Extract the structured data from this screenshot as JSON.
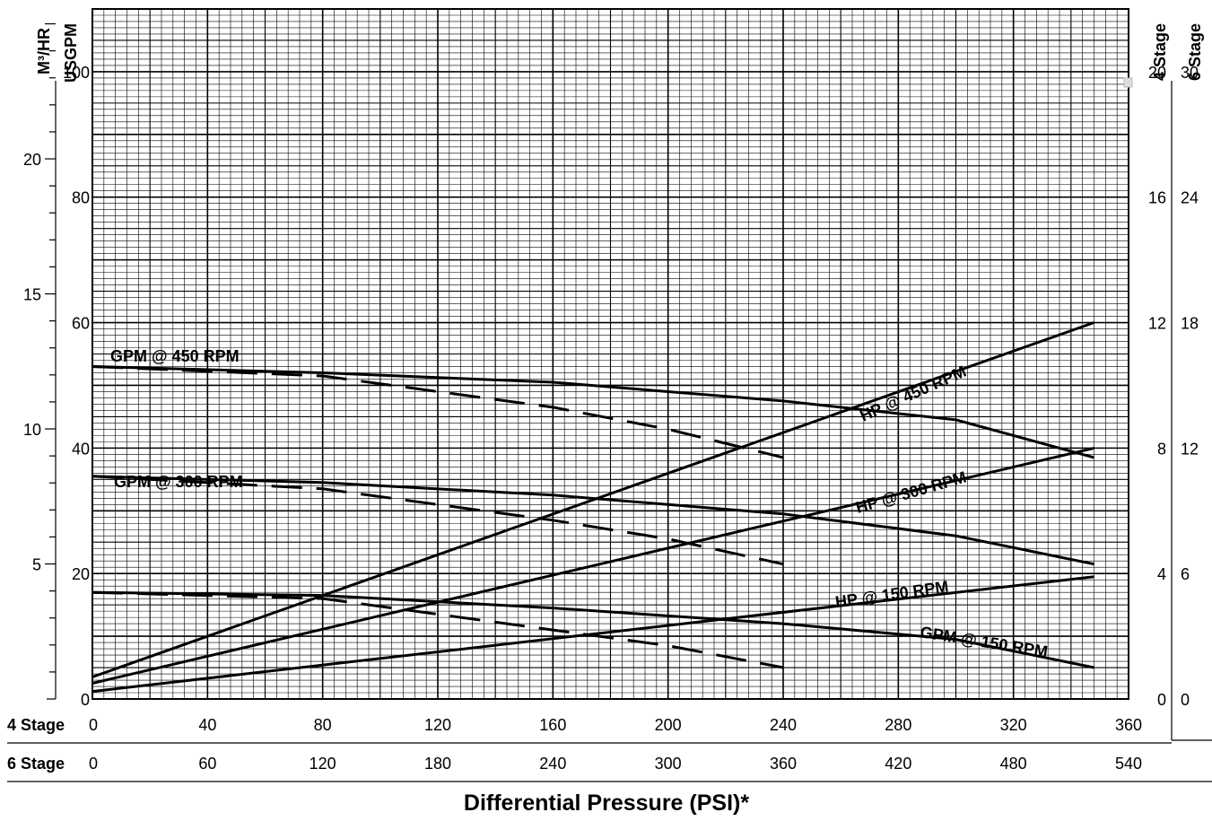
{
  "chart_data": {
    "type": "line",
    "xlabel": "Differential Pressure (PSI)*",
    "x_axes": [
      {
        "name": "4 Stage",
        "ticks": [
          0,
          40,
          80,
          120,
          160,
          200,
          240,
          280,
          320,
          360
        ]
      },
      {
        "name": "6 Stage",
        "ticks": [
          0,
          60,
          120,
          180,
          240,
          300,
          360,
          420,
          480,
          540
        ]
      }
    ],
    "xlim": [
      0,
      360
    ],
    "left_axes": [
      {
        "name": "M³/HR",
        "ticks": [
          5,
          10,
          15,
          20
        ],
        "lim": [
          0,
          25.55
        ]
      },
      {
        "name": "USGPM",
        "ticks": [
          0,
          20,
          40,
          60,
          80,
          100
        ],
        "lim": [
          0,
          110
        ]
      }
    ],
    "right_axes": [
      {
        "name": "4 Stage",
        "ticks": [
          0,
          4,
          8,
          12,
          16,
          20
        ],
        "lim": [
          0,
          22
        ]
      },
      {
        "name": "6 Stage",
        "ticks": [
          0,
          6,
          12,
          18,
          24,
          30
        ],
        "lim": [
          0,
          33
        ]
      }
    ],
    "ylim": [
      0,
      110
    ],
    "grid": true,
    "series": [
      {
        "name": "GPM @ 450 RPM",
        "style": "solid",
        "x": [
          0,
          80,
          160,
          240,
          300,
          348
        ],
        "y": [
          53,
          52,
          50.5,
          47.5,
          44.5,
          38.5
        ]
      },
      {
        "name": "GPM @ 450 RPM",
        "style": "dashed",
        "x": [
          0,
          80,
          160,
          200,
          240
        ],
        "y": [
          53,
          51.5,
          46.5,
          43,
          38.5
        ]
      },
      {
        "name": "GPM @ 300 RPM",
        "style": "solid",
        "x": [
          0,
          80,
          160,
          240,
          300,
          348
        ],
        "y": [
          35.5,
          34.5,
          32.5,
          29.5,
          26,
          21.5
        ]
      },
      {
        "name": "GPM @ 300 RPM",
        "style": "dashed",
        "x": [
          0,
          80,
          160,
          200,
          240
        ],
        "y": [
          35.5,
          33.5,
          28.5,
          25.5,
          21.5
        ]
      },
      {
        "name": "GPM @ 150 RPM",
        "style": "solid",
        "x": [
          0,
          80,
          160,
          240,
          300,
          348
        ],
        "y": [
          17,
          16.5,
          14.5,
          12,
          9.5,
          5
        ]
      },
      {
        "name": "GPM @ 150 RPM",
        "style": "dashed",
        "x": [
          0,
          80,
          120,
          160,
          200,
          240
        ],
        "y": [
          17,
          16,
          13.5,
          11,
          8.5,
          5
        ]
      },
      {
        "name": "HP @ 450 RPM",
        "x": [
          0,
          348
        ],
        "y": [
          3.5,
          60
        ]
      },
      {
        "name": "HP @ 300 RPM",
        "x": [
          0,
          348
        ],
        "y": [
          2.5,
          40
        ]
      },
      {
        "name": "HP @ 150 RPM",
        "x": [
          0,
          348
        ],
        "y": [
          1.2,
          19.5
        ]
      }
    ]
  }
}
